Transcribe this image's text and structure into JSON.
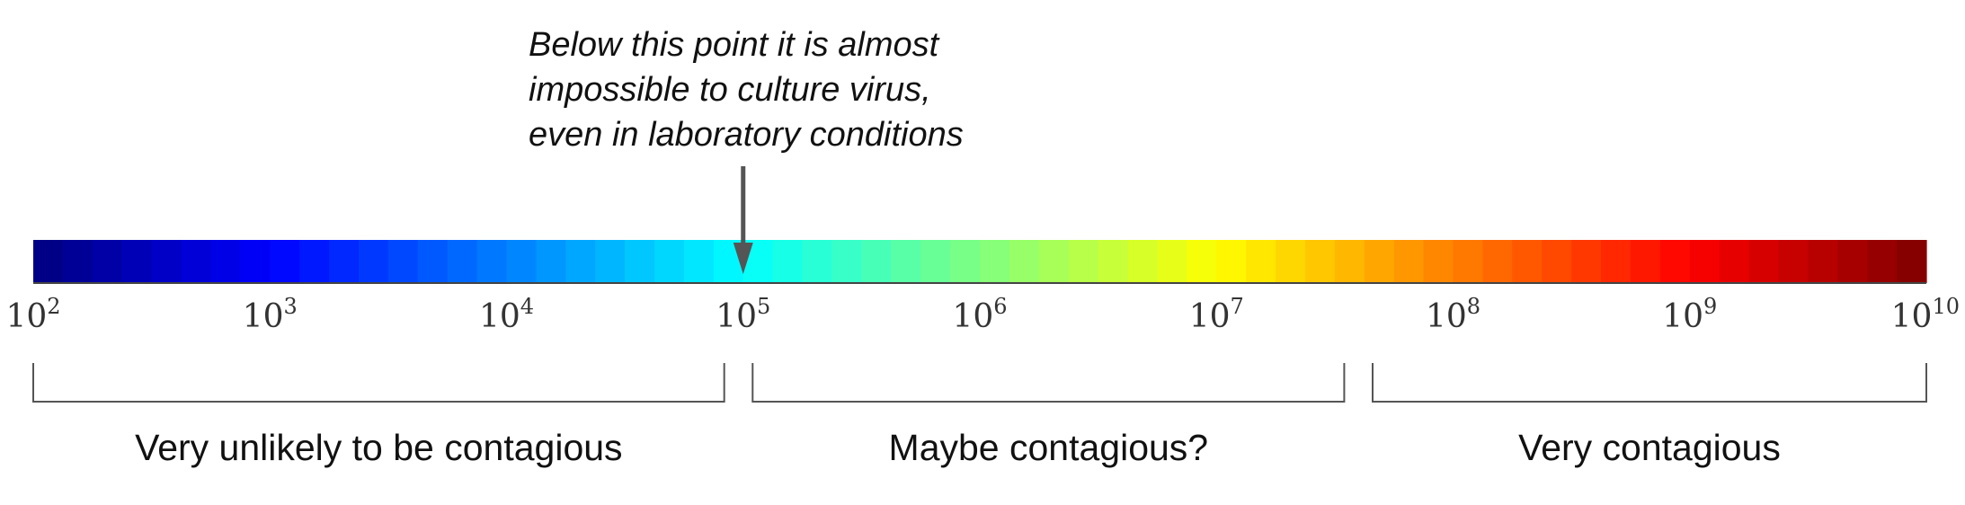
{
  "annotation": {
    "lines": [
      "Below this point it is almost",
      "impossible to culture virus,",
      "even in laboratory conditions"
    ],
    "points_to_exponent": 5
  },
  "scale": {
    "type": "log",
    "base": "10",
    "min_exponent": 2,
    "max_exponent": 10,
    "colormap": "jet",
    "ticks": [
      {
        "base": "10",
        "exp": "2"
      },
      {
        "base": "10",
        "exp": "3"
      },
      {
        "base": "10",
        "exp": "4"
      },
      {
        "base": "10",
        "exp": "5"
      },
      {
        "base": "10",
        "exp": "6"
      },
      {
        "base": "10",
        "exp": "7"
      },
      {
        "base": "10",
        "exp": "8"
      },
      {
        "base": "10",
        "exp": "9"
      },
      {
        "base": "10",
        "exp": "10"
      }
    ]
  },
  "ranges": [
    {
      "label": "Very unlikely to be contagious",
      "from_exponent": 2,
      "to_exponent": 4.92
    },
    {
      "label": "Maybe contagious?",
      "from_exponent": 5.04,
      "to_exponent": 7.54
    },
    {
      "label": "Very contagious",
      "from_exponent": 7.66,
      "to_exponent": 10
    }
  ],
  "colors": {
    "arrow": "#555555",
    "bracket": "#555555",
    "axis_line": "#444444"
  }
}
